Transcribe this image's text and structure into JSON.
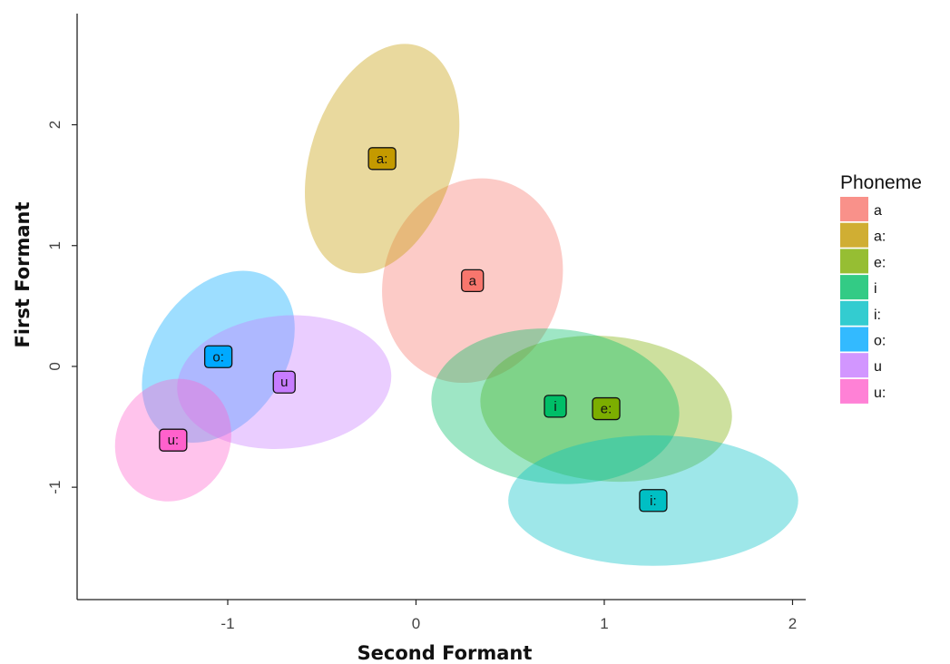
{
  "chart_data": {
    "type": "scatter",
    "title": "",
    "xlabel": "Second Formant",
    "ylabel": "First Formant",
    "xlim": [
      -1.8,
      2.07
    ],
    "ylim": [
      -1.93,
      2.92
    ],
    "xticks": [
      -1,
      0,
      1,
      2
    ],
    "yticks": [
      -1,
      0,
      1,
      2
    ],
    "grid": false,
    "legend": {
      "title": "Phoneme",
      "position": "right"
    },
    "series": [
      {
        "name": "a",
        "color": "#F8766D",
        "center": [
          0.3,
          0.71
        ],
        "ellipse": {
          "rx": 0.47,
          "ry": 0.86,
          "angle_deg": 20
        }
      },
      {
        "name": "a:",
        "color": "#C49A00",
        "center": [
          -0.18,
          1.72
        ],
        "ellipse": {
          "rx": 0.38,
          "ry": 0.98,
          "angle_deg": 18
        }
      },
      {
        "name": "e:",
        "color": "#7CAE00",
        "center": [
          1.01,
          -0.35
        ],
        "ellipse": {
          "rx": 0.67,
          "ry": 0.6,
          "angle_deg": 5
        }
      },
      {
        "name": "i",
        "color": "#00BE67",
        "center": [
          0.74,
          -0.33
        ],
        "ellipse": {
          "rx": 0.66,
          "ry": 0.64,
          "angle_deg": 5
        }
      },
      {
        "name": "i:",
        "color": "#00BFC4",
        "center": [
          1.26,
          -1.11
        ],
        "ellipse": {
          "rx": 0.77,
          "ry": 0.54,
          "angle_deg": 0
        }
      },
      {
        "name": "o:",
        "color": "#00A9FF",
        "center": [
          -1.05,
          0.08
        ],
        "ellipse": {
          "rx": 0.35,
          "ry": 0.78,
          "angle_deg": 35
        }
      },
      {
        "name": "u",
        "color": "#C77CFF",
        "center": [
          -0.7,
          -0.13
        ],
        "ellipse": {
          "rx": 0.57,
          "ry": 0.55,
          "angle_deg": -5
        }
      },
      {
        "name": "u:",
        "color": "#FF61CC",
        "center": [
          -1.29,
          -0.61
        ],
        "ellipse": {
          "rx": 0.3,
          "ry": 0.52,
          "angle_deg": 30
        }
      }
    ]
  }
}
